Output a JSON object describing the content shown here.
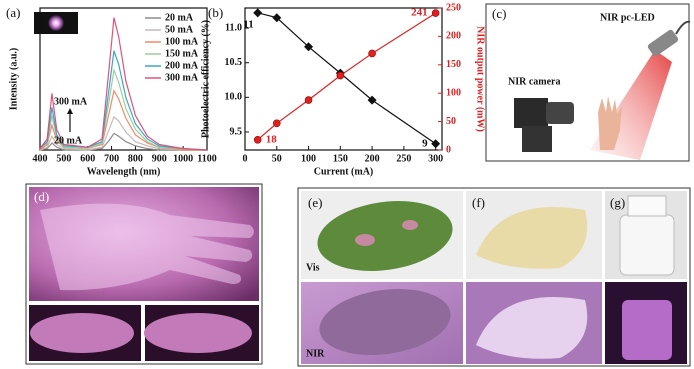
{
  "chart_data": [
    {
      "type": "line",
      "panel_label": "(a)",
      "xlabel": "Wavelength (nm)",
      "ylabel": "Intensity (a.u.)",
      "x": [
        400,
        430,
        450,
        470,
        500,
        600,
        660,
        690,
        710,
        730,
        760,
        800,
        850,
        900,
        1000,
        1100
      ],
      "xlim": [
        400,
        1100
      ],
      "xticks": [
        400,
        500,
        600,
        700,
        800,
        900,
        1000,
        1100
      ],
      "ylim": [
        0,
        1.03
      ],
      "legend": "upper right",
      "annotations": [
        "300 mA",
        "20 mA"
      ],
      "series": [
        {
          "name": "20 mA",
          "color": "#8c8c8c",
          "values": [
            0,
            0.01,
            0.05,
            0.02,
            0,
            0,
            0.01,
            0.07,
            0.12,
            0.1,
            0.06,
            0.03,
            0.01,
            0,
            0,
            0
          ]
        },
        {
          "name": "50 mA",
          "color": "#c9b9b4",
          "values": [
            0,
            0.02,
            0.1,
            0.04,
            0.01,
            0,
            0.02,
            0.15,
            0.24,
            0.21,
            0.13,
            0.06,
            0.03,
            0.01,
            0,
            0
          ]
        },
        {
          "name": "100 mA",
          "color": "#f08a6a",
          "values": [
            0,
            0.04,
            0.18,
            0.07,
            0.02,
            0.01,
            0.04,
            0.27,
            0.43,
            0.37,
            0.23,
            0.11,
            0.05,
            0.02,
            0,
            0
          ]
        },
        {
          "name": "150 mA",
          "color": "#9ccf9c",
          "values": [
            0.01,
            0.05,
            0.25,
            0.09,
            0.02,
            0.01,
            0.05,
            0.36,
            0.58,
            0.49,
            0.3,
            0.15,
            0.06,
            0.02,
            0.01,
            0
          ]
        },
        {
          "name": "200 mA",
          "color": "#3ba7c9",
          "values": [
            0.01,
            0.06,
            0.31,
            0.11,
            0.03,
            0.02,
            0.06,
            0.45,
            0.72,
            0.62,
            0.38,
            0.19,
            0.08,
            0.03,
            0.01,
            0
          ]
        },
        {
          "name": "300 mA",
          "color": "#e0527a",
          "values": [
            0.01,
            0.08,
            0.41,
            0.15,
            0.04,
            0.02,
            0.08,
            0.6,
            0.96,
            0.82,
            0.5,
            0.25,
            0.1,
            0.04,
            0.01,
            0
          ]
        }
      ]
    },
    {
      "type": "line",
      "panel_label": "(b)",
      "xlabel": "Current (mA)",
      "ylabel": "Photoelectric efficiency (%)",
      "y2label": "NIR output power (mW)",
      "x": [
        20,
        50,
        100,
        150,
        200,
        300
      ],
      "xlim": [
        0,
        310
      ],
      "xticks": [
        0,
        50,
        100,
        150,
        200,
        250,
        300
      ],
      "ylim": [
        9.24,
        11.29
      ],
      "yticks": [
        9.5,
        {
          "value": 10,
          "label": "10.0"
        },
        10.5,
        {
          "value": 11,
          "label": "11.0"
        }
      ],
      "y2lim": [
        0,
        250
      ],
      "y2ticks": [
        0,
        50,
        100,
        150,
        200,
        250
      ],
      "series": [
        {
          "color": "#111111",
          "marker": "diamond",
          "values": [
            11.22,
            11.15,
            10.73,
            10.35,
            9.96,
            9.33
          ],
          "value_labels": [
            "11",
            null,
            null,
            null,
            null,
            "9"
          ]
        },
        {
          "color": "#e02020",
          "marker": "circle",
          "axis": "y2",
          "values": [
            18,
            47,
            88,
            131,
            170,
            241
          ],
          "value_labels": [
            "18",
            null,
            null,
            null,
            null,
            "241"
          ]
        }
      ]
    }
  ],
  "panels": {
    "c": {
      "label": "(c)",
      "camera": "NIR camera",
      "led": "NIR pc-LED"
    },
    "d": {
      "label": "(d)"
    },
    "e": {
      "label": "(e)",
      "vis": "Vis",
      "nir": "NIR"
    },
    "f": {
      "label": "(f)"
    },
    "g": {
      "label": "(g)"
    }
  }
}
